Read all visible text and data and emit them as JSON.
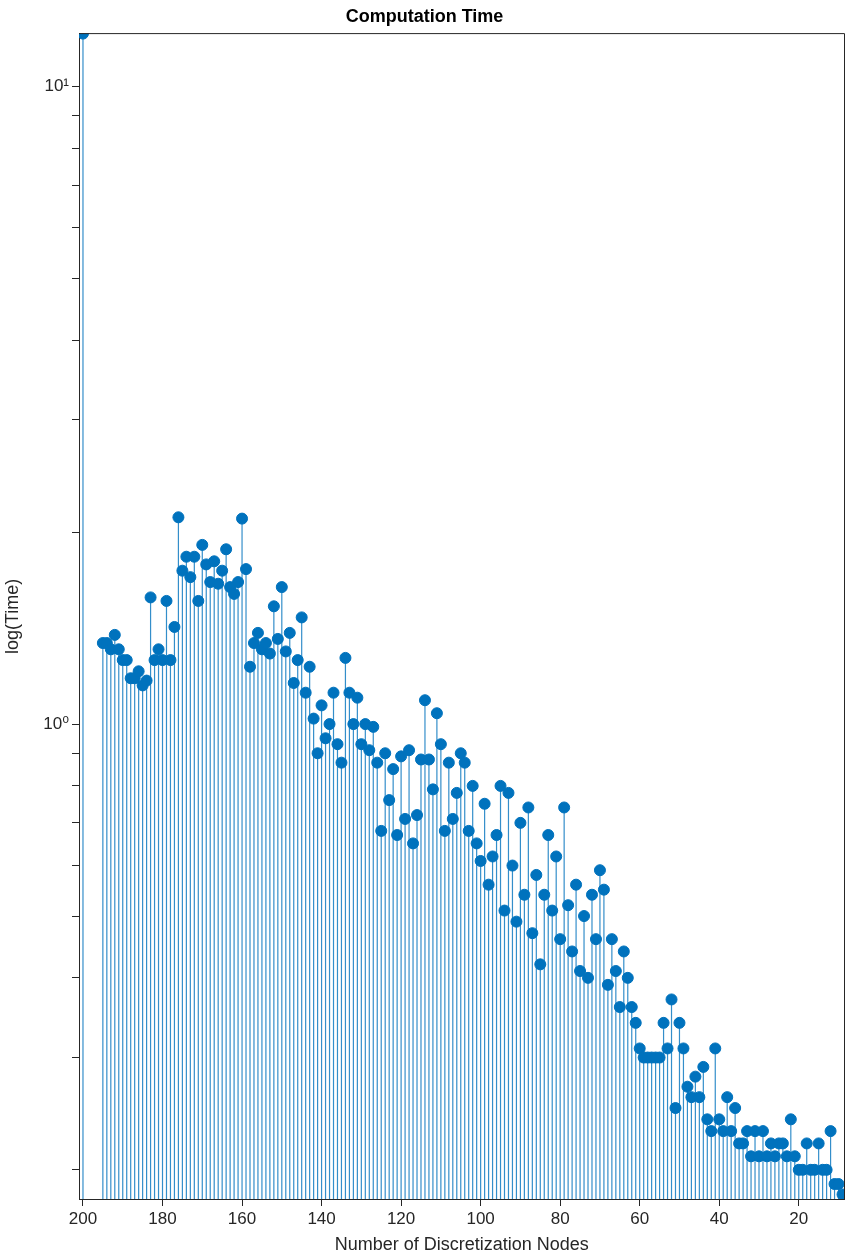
{
  "chart_data": {
    "type": "lollipop",
    "title": "Computation Time",
    "xlabel": "Number of Discretization Nodes",
    "ylabel": "log(Time)",
    "x": [
      200,
      195,
      194,
      193,
      192,
      191,
      190,
      189,
      188,
      187,
      186,
      185,
      184,
      183,
      182,
      181,
      180,
      179,
      178,
      177,
      176,
      175,
      174,
      173,
      172,
      171,
      170,
      169,
      168,
      167,
      166,
      165,
      164,
      163,
      162,
      161,
      160,
      159,
      158,
      157,
      156,
      155,
      154,
      153,
      152,
      151,
      150,
      149,
      148,
      147,
      146,
      145,
      144,
      143,
      142,
      141,
      140,
      139,
      138,
      137,
      136,
      135,
      134,
      133,
      132,
      131,
      130,
      129,
      128,
      127,
      126,
      125,
      124,
      123,
      122,
      121,
      120,
      119,
      118,
      117,
      116,
      115,
      114,
      113,
      112,
      111,
      110,
      109,
      108,
      107,
      106,
      105,
      104,
      103,
      102,
      101,
      100,
      99,
      98,
      97,
      96,
      95,
      94,
      93,
      92,
      91,
      90,
      89,
      88,
      87,
      86,
      85,
      84,
      83,
      82,
      81,
      80,
      79,
      78,
      77,
      76,
      75,
      74,
      73,
      72,
      71,
      70,
      69,
      68,
      67,
      66,
      65,
      64,
      63,
      62,
      61,
      60,
      59,
      58,
      57,
      56,
      55,
      54,
      53,
      52,
      51,
      50,
      49,
      48,
      47,
      46,
      45,
      44,
      43,
      42,
      41,
      40,
      39,
      38,
      37,
      36,
      35,
      34,
      33,
      32,
      31,
      30,
      29,
      28,
      27,
      26,
      25,
      24,
      23,
      22,
      21,
      20,
      19,
      18,
      17,
      16,
      15,
      14,
      13,
      12,
      11,
      10,
      9
    ],
    "values": [
      12.1,
      1.34,
      1.34,
      1.31,
      1.38,
      1.31,
      1.26,
      1.26,
      1.18,
      1.18,
      1.21,
      1.15,
      1.17,
      1.58,
      1.26,
      1.31,
      1.26,
      1.56,
      1.26,
      1.42,
      2.11,
      1.74,
      1.83,
      1.7,
      1.83,
      1.56,
      1.91,
      1.78,
      1.67,
      1.8,
      1.66,
      1.74,
      1.88,
      1.64,
      1.6,
      1.67,
      2.1,
      1.75,
      1.23,
      1.34,
      1.39,
      1.31,
      1.34,
      1.29,
      1.53,
      1.36,
      1.64,
      1.3,
      1.39,
      1.16,
      1.26,
      1.47,
      1.12,
      1.23,
      1.02,
      0.9,
      1.07,
      0.95,
      1.0,
      1.12,
      0.93,
      0.87,
      1.27,
      1.12,
      1.0,
      1.1,
      0.93,
      1.0,
      0.91,
      0.99,
      0.87,
      0.68,
      0.9,
      0.76,
      0.85,
      0.67,
      0.89,
      0.71,
      0.91,
      0.65,
      0.72,
      0.88,
      1.09,
      0.88,
      0.79,
      1.04,
      0.93,
      0.68,
      0.87,
      0.71,
      0.78,
      0.9,
      0.87,
      0.68,
      0.8,
      0.65,
      0.61,
      0.75,
      0.56,
      0.62,
      0.67,
      0.8,
      0.51,
      0.78,
      0.6,
      0.49,
      0.7,
      0.54,
      0.74,
      0.47,
      0.58,
      0.42,
      0.54,
      0.67,
      0.51,
      0.62,
      0.46,
      0.74,
      0.52,
      0.44,
      0.56,
      0.41,
      0.5,
      0.4,
      0.54,
      0.46,
      0.59,
      0.55,
      0.39,
      0.46,
      0.41,
      0.36,
      0.44,
      0.4,
      0.36,
      0.34,
      0.31,
      0.3,
      0.3,
      0.3,
      0.3,
      0.3,
      0.34,
      0.31,
      0.37,
      0.25,
      0.34,
      0.31,
      0.27,
      0.26,
      0.28,
      0.26,
      0.29,
      0.24,
      0.23,
      0.31,
      0.24,
      0.23,
      0.26,
      0.23,
      0.25,
      0.22,
      0.22,
      0.23,
      0.21,
      0.23,
      0.21,
      0.23,
      0.21,
      0.22,
      0.21,
      0.22,
      0.22,
      0.21,
      0.24,
      0.21,
      0.2,
      0.2,
      0.22,
      0.2,
      0.2,
      0.22,
      0.2,
      0.2,
      0.23,
      0.19,
      0.19,
      0.183
    ],
    "color": "#0072bd",
    "marker": "circle",
    "log": "y",
    "grid": false,
    "legend": false,
    "xlim": [
      201,
      8.5
    ],
    "xticks": [
      200,
      180,
      160,
      140,
      120,
      100,
      80,
      60,
      40,
      20
    ],
    "ylim": [
      0.18,
      12.1
    ],
    "yticks": [
      {
        "value": 0.2,
        "label": null
      },
      {
        "value": 0.3,
        "label": null
      },
      {
        "value": 0.4,
        "label": null
      },
      {
        "value": 0.5,
        "label": null
      },
      {
        "value": 0.6,
        "label": null
      },
      {
        "value": 0.7,
        "label": null
      },
      {
        "value": 0.8,
        "label": null
      },
      {
        "value": 0.9,
        "label": null
      },
      {
        "value": 1,
        "label": "10⁰"
      },
      {
        "value": 2,
        "label": null
      },
      {
        "value": 3,
        "label": null
      },
      {
        "value": 4,
        "label": null
      },
      {
        "value": 5,
        "label": null
      },
      {
        "value": 6,
        "label": null
      },
      {
        "value": 7,
        "label": null
      },
      {
        "value": 8,
        "label": null
      },
      {
        "value": 9,
        "label": null
      },
      {
        "value": 10,
        "label": "10¹"
      }
    ]
  }
}
